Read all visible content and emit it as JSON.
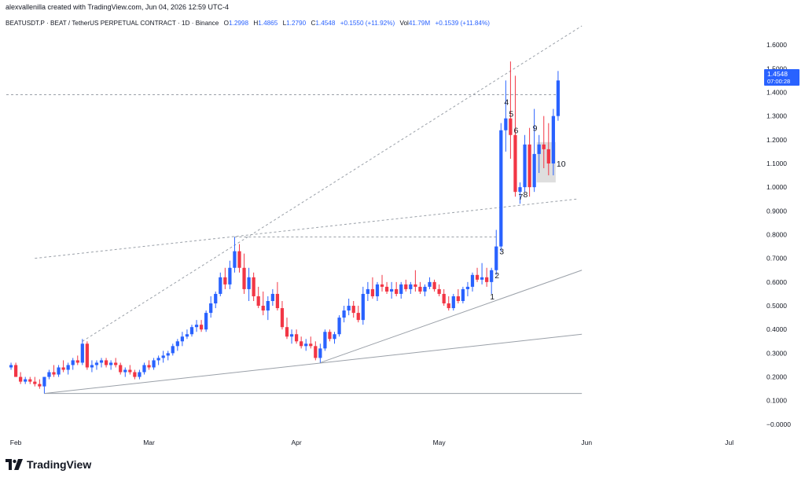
{
  "header": {
    "credit": "alexvallenilla created with TradingView.com, Jun 04, 2026 12:59 UTC-4"
  },
  "legend": {
    "symbol": "BEATUSDT.P · BEAT / TetherUS PERPETUAL CONTRACT · 1D · Binance",
    "open_label": "O",
    "open": "1.2998",
    "high_label": "H",
    "high": "1.4865",
    "low_label": "L",
    "low": "1.2790",
    "close_label": "C",
    "close": "1.4548",
    "change": "+0.1550 (+11.92%)",
    "vol_label": "Vol",
    "vol": "41.79M",
    "vol_change": "+0.1539 (+11.84%)"
  },
  "price_tag": {
    "price": "1.4548",
    "countdown": "07:00:28"
  },
  "brand": {
    "name": "TradingView"
  },
  "colors": {
    "up": "#2962ff",
    "down": "#f23645",
    "line": "#9aa0a8",
    "tag": "#2962ff",
    "box": "#d6d6d6"
  },
  "chart_data": {
    "type": "candlestick",
    "ylim": [
      -0.05,
      1.66
    ],
    "y_ticks": [
      "1.6000",
      "1.5000",
      "1.4000",
      "1.3000",
      "1.2000",
      "1.1000",
      "1.0000",
      "0.9000",
      "0.8000",
      "0.7000",
      "0.6000",
      "0.5000",
      "0.4000",
      "0.3000",
      "0.2000",
      "0.1000",
      "−0.0000"
    ],
    "y_tick_values": [
      1.6,
      1.5,
      1.4,
      1.3,
      1.2,
      1.1,
      1.0,
      0.9,
      0.8,
      0.7,
      0.6,
      0.5,
      0.4,
      0.3,
      0.2,
      0.1,
      0.0
    ],
    "x_ticks": [
      {
        "label": "Feb",
        "day": 0
      },
      {
        "label": "Mar",
        "day": 28
      },
      {
        "label": "Apr",
        "day": 59
      },
      {
        "label": "May",
        "day": 89
      },
      {
        "label": "Jun",
        "day": 120
      },
      {
        "label": "Jul",
        "day": 150
      }
    ],
    "day_range": [
      -2,
      155
    ],
    "candles": [
      [
        -1,
        0.24,
        0.26,
        0.23,
        0.25
      ],
      [
        0,
        0.25,
        0.26,
        0.2,
        0.2
      ],
      [
        1,
        0.2,
        0.22,
        0.17,
        0.18
      ],
      [
        2,
        0.18,
        0.2,
        0.17,
        0.19
      ],
      [
        3,
        0.19,
        0.2,
        0.17,
        0.18
      ],
      [
        4,
        0.18,
        0.2,
        0.16,
        0.17
      ],
      [
        5,
        0.17,
        0.19,
        0.15,
        0.16
      ],
      [
        6,
        0.16,
        0.2,
        0.13,
        0.2
      ],
      [
        7,
        0.2,
        0.23,
        0.19,
        0.22
      ],
      [
        8,
        0.22,
        0.25,
        0.2,
        0.21
      ],
      [
        9,
        0.21,
        0.25,
        0.2,
        0.24
      ],
      [
        10,
        0.24,
        0.27,
        0.22,
        0.23
      ],
      [
        11,
        0.23,
        0.26,
        0.21,
        0.25
      ],
      [
        12,
        0.25,
        0.28,
        0.23,
        0.27
      ],
      [
        13,
        0.27,
        0.29,
        0.25,
        0.26
      ],
      [
        14,
        0.26,
        0.36,
        0.25,
        0.34
      ],
      [
        15,
        0.34,
        0.35,
        0.23,
        0.24
      ],
      [
        16,
        0.24,
        0.27,
        0.22,
        0.25
      ],
      [
        17,
        0.25,
        0.27,
        0.23,
        0.26
      ],
      [
        18,
        0.26,
        0.28,
        0.24,
        0.27
      ],
      [
        19,
        0.27,
        0.28,
        0.24,
        0.25
      ],
      [
        20,
        0.25,
        0.27,
        0.23,
        0.26
      ],
      [
        21,
        0.26,
        0.28,
        0.24,
        0.25
      ],
      [
        22,
        0.25,
        0.26,
        0.21,
        0.22
      ],
      [
        23,
        0.22,
        0.24,
        0.2,
        0.23
      ],
      [
        24,
        0.23,
        0.25,
        0.21,
        0.22
      ],
      [
        25,
        0.22,
        0.23,
        0.19,
        0.2
      ],
      [
        26,
        0.2,
        0.23,
        0.19,
        0.22
      ],
      [
        27,
        0.22,
        0.26,
        0.21,
        0.25
      ],
      [
        28,
        0.25,
        0.27,
        0.23,
        0.24
      ],
      [
        29,
        0.24,
        0.28,
        0.23,
        0.27
      ],
      [
        30,
        0.27,
        0.29,
        0.25,
        0.28
      ],
      [
        31,
        0.28,
        0.31,
        0.26,
        0.29
      ],
      [
        32,
        0.29,
        0.31,
        0.27,
        0.3
      ],
      [
        33,
        0.3,
        0.34,
        0.29,
        0.33
      ],
      [
        34,
        0.33,
        0.36,
        0.31,
        0.35
      ],
      [
        35,
        0.35,
        0.39,
        0.33,
        0.37
      ],
      [
        36,
        0.37,
        0.4,
        0.36,
        0.38
      ],
      [
        37,
        0.38,
        0.42,
        0.37,
        0.41
      ],
      [
        38,
        0.41,
        0.44,
        0.39,
        0.42
      ],
      [
        39,
        0.42,
        0.44,
        0.39,
        0.4
      ],
      [
        40,
        0.4,
        0.48,
        0.39,
        0.47
      ],
      [
        41,
        0.47,
        0.54,
        0.45,
        0.51
      ],
      [
        42,
        0.51,
        0.56,
        0.49,
        0.55
      ],
      [
        43,
        0.55,
        0.64,
        0.54,
        0.62
      ],
      [
        44,
        0.62,
        0.66,
        0.57,
        0.59
      ],
      [
        45,
        0.59,
        0.69,
        0.57,
        0.66
      ],
      [
        46,
        0.66,
        0.79,
        0.64,
        0.73
      ],
      [
        47,
        0.73,
        0.76,
        0.64,
        0.66
      ],
      [
        48,
        0.66,
        0.72,
        0.55,
        0.57
      ],
      [
        49,
        0.57,
        0.66,
        0.52,
        0.62
      ],
      [
        50,
        0.62,
        0.64,
        0.52,
        0.54
      ],
      [
        51,
        0.54,
        0.58,
        0.49,
        0.5
      ],
      [
        52,
        0.5,
        0.56,
        0.46,
        0.48
      ],
      [
        53,
        0.48,
        0.54,
        0.44,
        0.52
      ],
      [
        54,
        0.52,
        0.57,
        0.5,
        0.55
      ],
      [
        55,
        0.55,
        0.6,
        0.48,
        0.49
      ],
      [
        56,
        0.49,
        0.52,
        0.4,
        0.41
      ],
      [
        57,
        0.41,
        0.45,
        0.36,
        0.37
      ],
      [
        58,
        0.37,
        0.4,
        0.34,
        0.38
      ],
      [
        59,
        0.38,
        0.4,
        0.34,
        0.35
      ],
      [
        60,
        0.35,
        0.37,
        0.32,
        0.33
      ],
      [
        61,
        0.33,
        0.36,
        0.31,
        0.34
      ],
      [
        62,
        0.34,
        0.37,
        0.32,
        0.33
      ],
      [
        63,
        0.33,
        0.35,
        0.27,
        0.28
      ],
      [
        64,
        0.28,
        0.34,
        0.26,
        0.32
      ],
      [
        65,
        0.32,
        0.4,
        0.31,
        0.39
      ],
      [
        66,
        0.39,
        0.4,
        0.35,
        0.36
      ],
      [
        67,
        0.36,
        0.39,
        0.34,
        0.38
      ],
      [
        68,
        0.38,
        0.46,
        0.37,
        0.45
      ],
      [
        69,
        0.45,
        0.5,
        0.43,
        0.48
      ],
      [
        70,
        0.48,
        0.53,
        0.46,
        0.5
      ],
      [
        71,
        0.5,
        0.52,
        0.45,
        0.47
      ],
      [
        72,
        0.47,
        0.5,
        0.43,
        0.44
      ],
      [
        73,
        0.44,
        0.58,
        0.42,
        0.55
      ],
      [
        74,
        0.55,
        0.6,
        0.52,
        0.57
      ],
      [
        75,
        0.57,
        0.62,
        0.53,
        0.54
      ],
      [
        76,
        0.54,
        0.6,
        0.52,
        0.59
      ],
      [
        77,
        0.59,
        0.63,
        0.56,
        0.58
      ],
      [
        78,
        0.58,
        0.6,
        0.55,
        0.56
      ],
      [
        79,
        0.56,
        0.6,
        0.53,
        0.57
      ],
      [
        80,
        0.57,
        0.6,
        0.54,
        0.55
      ],
      [
        81,
        0.55,
        0.6,
        0.53,
        0.59
      ],
      [
        82,
        0.59,
        0.61,
        0.56,
        0.57
      ],
      [
        83,
        0.57,
        0.6,
        0.55,
        0.59
      ],
      [
        84,
        0.59,
        0.65,
        0.56,
        0.58
      ],
      [
        85,
        0.58,
        0.6,
        0.55,
        0.56
      ],
      [
        86,
        0.56,
        0.59,
        0.54,
        0.58
      ],
      [
        87,
        0.58,
        0.62,
        0.57,
        0.6
      ],
      [
        88,
        0.6,
        0.61,
        0.56,
        0.57
      ],
      [
        89,
        0.57,
        0.59,
        0.54,
        0.55
      ],
      [
        90,
        0.55,
        0.57,
        0.5,
        0.51
      ],
      [
        91,
        0.51,
        0.54,
        0.48,
        0.49
      ],
      [
        92,
        0.49,
        0.55,
        0.48,
        0.54
      ],
      [
        93,
        0.54,
        0.57,
        0.51,
        0.52
      ],
      [
        94,
        0.52,
        0.58,
        0.51,
        0.57
      ],
      [
        95,
        0.57,
        0.6,
        0.54,
        0.58
      ],
      [
        96,
        0.58,
        0.64,
        0.56,
        0.63
      ],
      [
        97,
        0.63,
        0.66,
        0.6,
        0.61
      ],
      [
        98,
        0.61,
        0.68,
        0.59,
        0.62
      ],
      [
        99,
        0.62,
        0.66,
        0.58,
        0.6
      ],
      [
        100,
        0.6,
        0.66,
        0.55,
        0.65
      ],
      [
        101,
        0.65,
        0.82,
        0.63,
        0.75
      ],
      [
        102,
        0.75,
        1.27,
        0.73,
        1.24
      ],
      [
        103,
        1.24,
        1.45,
        1.15,
        1.29
      ],
      [
        104,
        1.29,
        1.53,
        1.12,
        1.22
      ],
      [
        105,
        1.22,
        1.47,
        0.96,
        0.98
      ],
      [
        106,
        0.98,
        1.02,
        0.93,
        1.0
      ],
      [
        107,
        1.0,
        1.22,
        0.98,
        1.18
      ],
      [
        108,
        1.18,
        1.25,
        0.96,
        1.0
      ],
      [
        109,
        1.0,
        1.33,
        0.98,
        1.14
      ],
      [
        110,
        1.14,
        1.22,
        1.06,
        1.18
      ],
      [
        111,
        1.18,
        1.3,
        1.08,
        1.16
      ],
      [
        112,
        1.16,
        1.27,
        1.05,
        1.1
      ],
      [
        113,
        1.1,
        1.33,
        1.05,
        1.3
      ],
      [
        114,
        1.3,
        1.49,
        1.28,
        1.45
      ]
    ],
    "wave_labels": [
      "1",
      "2",
      "3",
      "4",
      "5",
      "6",
      "7",
      "8",
      "9",
      "10"
    ],
    "wave_label_pos": [
      [
        100,
        0.54
      ],
      [
        101,
        0.63
      ],
      [
        102,
        0.73
      ],
      [
        103,
        1.36
      ],
      [
        104,
        1.31
      ],
      [
        105,
        1.24
      ],
      [
        106,
        0.96
      ],
      [
        107,
        0.97
      ],
      [
        109,
        1.25
      ],
      [
        114,
        1.1
      ]
    ]
  }
}
